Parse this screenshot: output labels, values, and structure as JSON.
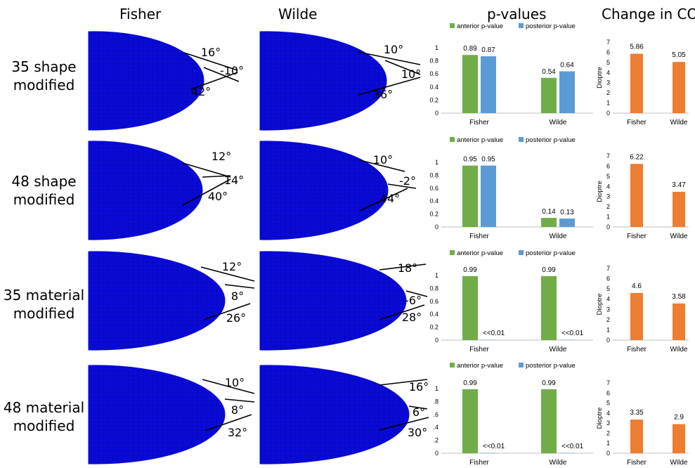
{
  "headers": {
    "fisher": "Fisher",
    "wilde": "Wilde",
    "pvalues": "p-values",
    "cop": "Change in COP"
  },
  "legend": {
    "anterior": "anterior p-value",
    "posterior": "posterior p-value"
  },
  "colors": {
    "anterior": "#70ad47",
    "posterior": "#5b9bd5",
    "cop": "#ed7d31",
    "lens": "#0a0ad8",
    "mesh": "#000030"
  },
  "rows": [
    {
      "label1": "35 shape",
      "label2": "modified",
      "fisher_angles": [
        "16°",
        "-10°",
        "42°"
      ],
      "wilde_angles": [
        "10°",
        "10°",
        "36°"
      ]
    },
    {
      "label1": "48 shape",
      "label2": "modified",
      "fisher_angles": [
        "12°",
        "14°",
        "40°"
      ],
      "wilde_angles": [
        "10°",
        "-2°",
        "44°"
      ]
    },
    {
      "label1": "35 material",
      "label2": "modified",
      "fisher_angles": [
        "12°",
        "8°",
        "26°"
      ],
      "wilde_angles": [
        "18°",
        "-6°",
        "28°"
      ]
    },
    {
      "label1": "48 material",
      "label2": "modified",
      "fisher_angles": [
        "10°",
        "8°",
        "32°"
      ],
      "wilde_angles": [
        "16°",
        "6°",
        "30°"
      ]
    }
  ],
  "chart_data": [
    {
      "type": "bar",
      "title": "p-values",
      "categories": [
        "Fisher",
        "Wilde"
      ],
      "series": [
        {
          "name": "anterior p-value",
          "values": [
            0.89,
            0.54
          ],
          "labels": [
            "0.89",
            "0.54"
          ]
        },
        {
          "name": "posterior p-value",
          "values": [
            0.87,
            0.64
          ],
          "labels": [
            "0.87",
            "0.64"
          ]
        }
      ],
      "yticks": [
        "0",
        "0.2",
        "0.4",
        "0.6",
        "0.8",
        "1"
      ],
      "ylim": [
        0,
        1
      ]
    },
    {
      "type": "bar",
      "title": "Change in COP",
      "categories": [
        "Fisher",
        "Wilde"
      ],
      "series": [
        {
          "values": [
            5.86,
            5.05
          ],
          "labels": [
            "5.86",
            "5.05"
          ]
        }
      ],
      "ylabel": "Dioptre",
      "yticks": [
        "0",
        "1",
        "2",
        "3",
        "4",
        "5",
        "6",
        "7"
      ],
      "ylim": [
        0,
        7
      ]
    },
    {
      "type": "bar",
      "title": "p-values",
      "categories": [
        "Fisher",
        "Wilde"
      ],
      "series": [
        {
          "name": "anterior p-value",
          "values": [
            0.95,
            0.14
          ],
          "labels": [
            "0.95",
            "0.14"
          ]
        },
        {
          "name": "posterior p-value",
          "values": [
            0.95,
            0.13
          ],
          "labels": [
            "0.95",
            "0.13"
          ]
        }
      ],
      "yticks": [
        "0",
        "0.2",
        "0.4",
        "0.6",
        "0.8",
        "1"
      ],
      "ylim": [
        0,
        1
      ]
    },
    {
      "type": "bar",
      "title": "Change in COP",
      "categories": [
        "Fisher",
        "Wilde"
      ],
      "series": [
        {
          "values": [
            6.22,
            3.47
          ],
          "labels": [
            "6.22",
            "3.47"
          ]
        }
      ],
      "ylabel": "Dioptre",
      "yticks": [
        "0",
        "1",
        "2",
        "3",
        "4",
        "5",
        "6",
        "7"
      ],
      "ylim": [
        0,
        7
      ]
    },
    {
      "type": "bar",
      "title": "p-values",
      "categories": [
        "Fisher",
        "Wilde"
      ],
      "series": [
        {
          "name": "anterior p-value",
          "values": [
            0.99,
            0.99
          ],
          "labels": [
            "0.99",
            "0.99"
          ]
        },
        {
          "name": "posterior p-value",
          "values": [
            0.005,
            0.005
          ],
          "labels": [
            "<<0.01",
            "<<0.01"
          ]
        }
      ],
      "yticks": [
        "0",
        "0.2",
        "0.4",
        "0.6",
        "0.8",
        "1"
      ],
      "ylim": [
        0,
        1
      ]
    },
    {
      "type": "bar",
      "title": "Change in COP",
      "categories": [
        "Fisher",
        "Wilde"
      ],
      "series": [
        {
          "values": [
            4.6,
            3.58
          ],
          "labels": [
            "4.6",
            "3.58"
          ]
        }
      ],
      "ylabel": "Dioptre",
      "yticks": [
        "0",
        "1",
        "2",
        "3",
        "4",
        "5",
        "6",
        "7"
      ],
      "ylim": [
        0,
        7
      ]
    },
    {
      "type": "bar",
      "title": "p-values",
      "categories": [
        "Fisher",
        "Wilde"
      ],
      "series": [
        {
          "name": "anterior p-value",
          "values": [
            0.99,
            0.99
          ],
          "labels": [
            "0.99",
            "0.99"
          ]
        },
        {
          "name": "posterior p-value",
          "values": [
            0.005,
            0.005
          ],
          "labels": [
            "<<0.01",
            "<<0.01"
          ]
        }
      ],
      "yticks": [
        "0",
        ".2",
        ".4",
        ".6",
        ".8",
        "1"
      ],
      "ylim": [
        0,
        1
      ]
    },
    {
      "type": "bar",
      "title": "Change in COP",
      "categories": [
        "Fisher",
        "Wilde"
      ],
      "series": [
        {
          "values": [
            3.35,
            2.9
          ],
          "labels": [
            "3.35",
            "2.9"
          ]
        }
      ],
      "ylabel": "Dioptre",
      "yticks": [
        "0",
        "1",
        "2",
        "3",
        "4",
        "5",
        "6",
        "7"
      ],
      "ylim": [
        0,
        7
      ]
    }
  ]
}
